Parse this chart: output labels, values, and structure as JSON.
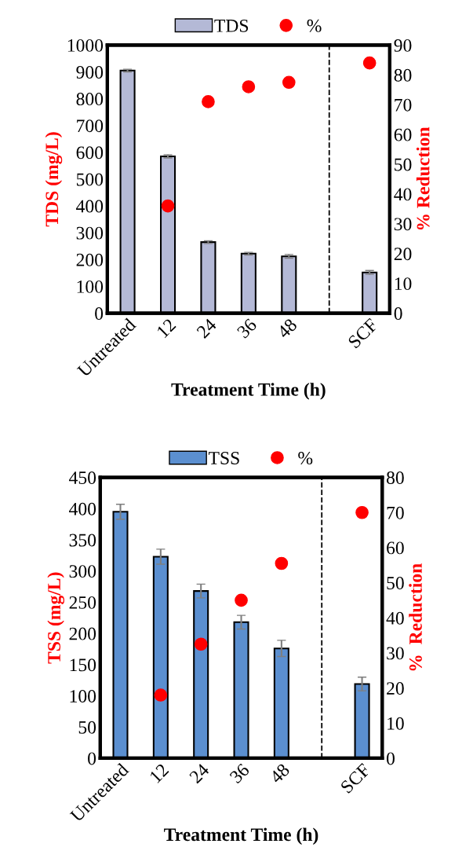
{
  "chart_data": [
    {
      "type": "bar",
      "xlabel": "Treatment Time (h)",
      "ylabel": "TDS (mg/L)",
      "y2label": "% Reduction",
      "categories": [
        "Untreated",
        "12",
        "24",
        "36",
        "48",
        null,
        "SCF"
      ],
      "legend": "top",
      "ylim": [
        0,
        1000
      ],
      "yticks": [
        0,
        100,
        200,
        300,
        400,
        500,
        600,
        700,
        800,
        900,
        1000
      ],
      "y2lim": [
        0,
        90
      ],
      "y2ticks": [
        0,
        10,
        20,
        30,
        40,
        50,
        60,
        70,
        80,
        90
      ],
      "series": [
        {
          "name": "TDS",
          "color": "#b4b9d6",
          "values": [
            905,
            585,
            265,
            222,
            212,
            null,
            152
          ],
          "errors": [
            5,
            6,
            5,
            5,
            7,
            null,
            7
          ]
        },
        {
          "name": "%",
          "type": "scatter",
          "axis": "y2",
          "color": "#ff0000",
          "marker": "circle",
          "x": [
            "12",
            "24",
            "36",
            "48",
            "SCF"
          ],
          "values": [
            36,
            71,
            76,
            77.5,
            84
          ]
        }
      ]
    },
    {
      "type": "bar",
      "xlabel": "Treatment Time (h)",
      "ylabel": "TSS (mg/L)",
      "y2label": "%  Reduction",
      "categories": [
        "Untreated",
        "12",
        "24",
        "36",
        "48",
        null,
        "SCF"
      ],
      "legend": "top",
      "ylim": [
        0,
        450
      ],
      "yticks": [
        0,
        50,
        100,
        150,
        200,
        250,
        300,
        350,
        400,
        450
      ],
      "y2lim": [
        0,
        80
      ],
      "y2ticks": [
        0,
        10,
        20,
        30,
        40,
        50,
        60,
        70,
        80
      ],
      "series": [
        {
          "name": "TSS",
          "color": "#5b8fd0",
          "values": [
            395,
            323,
            268,
            218,
            176,
            null,
            119
          ],
          "errors": [
            12,
            12,
            11,
            11,
            13,
            null,
            11
          ]
        },
        {
          "name": "%",
          "type": "scatter",
          "axis": "y2",
          "color": "#ff0000",
          "marker": "circle",
          "x": [
            "12",
            "24",
            "36",
            "48",
            "SCF"
          ],
          "values": [
            18,
            32.5,
            45,
            55.5,
            70
          ]
        }
      ]
    }
  ]
}
